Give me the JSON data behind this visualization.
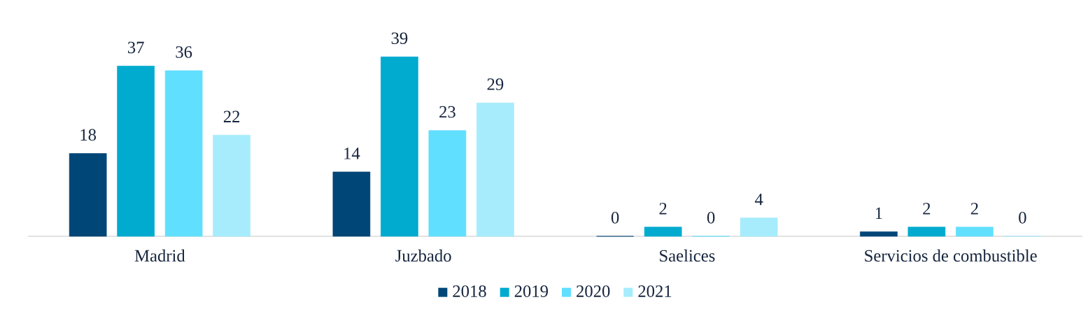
{
  "chart_data": {
    "type": "bar",
    "categories": [
      "Madrid",
      "Juzbado",
      "Saelices",
      "Servicios de combustible"
    ],
    "series": [
      {
        "name": "2018",
        "color": "#004677",
        "values": [
          18,
          14,
          0,
          1
        ]
      },
      {
        "name": "2019",
        "color": "#00abcf",
        "values": [
          37,
          39,
          2,
          2
        ]
      },
      {
        "name": "2020",
        "color": "#61dffe",
        "values": [
          36,
          23,
          0,
          2
        ]
      },
      {
        "name": "2021",
        "color": "#a6ecfc",
        "values": [
          22,
          29,
          4,
          0
        ]
      }
    ],
    "data_labels": true,
    "legend": "bottom"
  }
}
